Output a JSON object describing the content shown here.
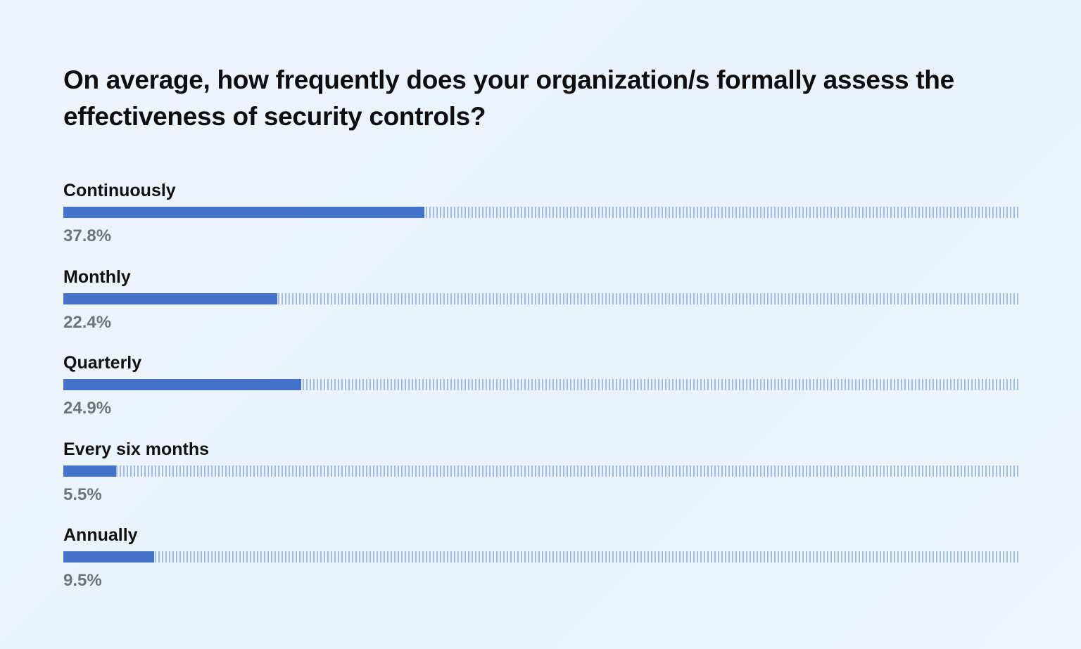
{
  "chart_data": {
    "type": "bar",
    "orientation": "horizontal",
    "title": "On average, how frequently does your organization/s formally assess the effectiveness of security controls?",
    "categories": [
      "Continuously",
      "Monthly",
      "Quarterly",
      "Every six months",
      "Annually"
    ],
    "values": [
      37.8,
      22.4,
      24.9,
      5.5,
      9.5
    ],
    "value_labels": [
      "37.8%",
      "22.4%",
      "24.9%",
      "5.5%",
      "9.5%"
    ],
    "xlim": [
      0,
      100
    ],
    "grid": false,
    "legend": "none",
    "colors": {
      "bar": "#4472cb",
      "track": "#9fbde6",
      "value_text": "#6f747b"
    }
  }
}
